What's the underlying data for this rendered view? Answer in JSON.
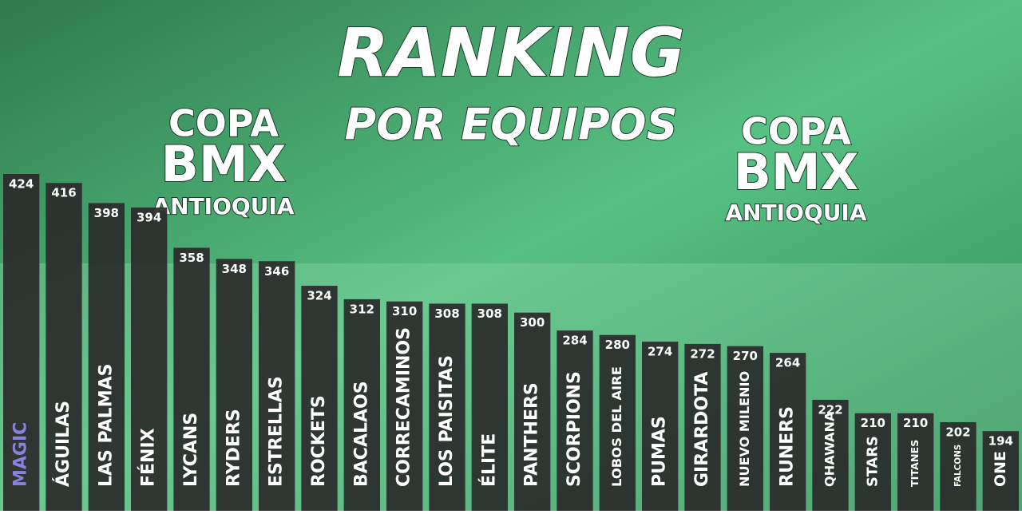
{
  "chart_data": {
    "type": "bar",
    "title": "RANKING",
    "subtitle": "POR EQUIPOS",
    "logo": {
      "line1": "COPA",
      "line2": "BMX",
      "line3": "ANTIOQUIA"
    },
    "categories": [
      "MAGIC",
      "ÁGUILAS",
      "LAS PALMAS",
      "FÉNIX",
      "LYCANS",
      "RYDERS",
      "ESTRELLAS",
      "ROCKETS",
      "BACALAOS",
      "CORRECAMINOS",
      "LOS PAISITAS",
      "ÉLITE",
      "PANTHERS",
      "SCORPIONS",
      "LOBOS DEL AIRE",
      "PUMAS",
      "GIRARDOTA",
      "NUEVO MILENIO",
      "RUNERS",
      "QHAWANA",
      "STARS",
      "TITANES",
      "FALCONS",
      "ONE"
    ],
    "values": [
      424,
      416,
      398,
      394,
      358,
      348,
      346,
      324,
      312,
      310,
      308,
      308,
      300,
      284,
      280,
      274,
      272,
      270,
      264,
      222,
      210,
      210,
      202,
      194
    ],
    "color": "#2a2a2a",
    "label_colors": [
      "#8b80e0",
      "#ffffff",
      "#ffffff",
      "#ffffff",
      "#ffffff",
      "#ffffff",
      "#ffffff",
      "#ffffff",
      "#ffffff",
      "#ffffff",
      "#ffffff",
      "#ffffff",
      "#ffffff",
      "#ffffff",
      "#ffffff",
      "#ffffff",
      "#ffffff",
      "#ffffff",
      "#ffffff",
      "#ffffff",
      "#ffffff",
      "#ffffff",
      "#ffffff",
      "#ffffff"
    ],
    "ylim": [
      137,
      424
    ]
  }
}
